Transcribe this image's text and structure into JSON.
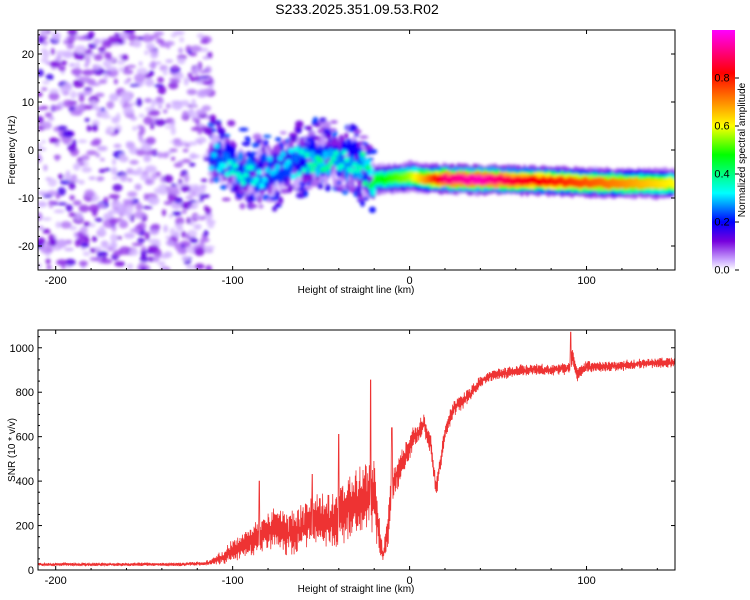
{
  "title": "S233.2025.351.09.53.R02",
  "chart_data": [
    {
      "type": "heatmap",
      "xlabel": "Height of straight line (km)",
      "ylabel": "Frequency (Hz)",
      "xlim": [
        -210,
        150
      ],
      "ylim": [
        -25,
        25
      ],
      "xticks": [
        -200,
        -100,
        0,
        100
      ],
      "xtick_labels": [
        "-200",
        "-100",
        "0",
        "100"
      ],
      "yticks": [
        -20,
        -10,
        0,
        10,
        20
      ],
      "ytick_labels": [
        "-20",
        "-10",
        "0",
        "10",
        "20"
      ],
      "colorbar": {
        "label": "Normalized spectral amplitude",
        "range": [
          0,
          1
        ],
        "ticks": [
          0.0,
          0.2,
          0.4,
          0.6,
          0.8
        ],
        "tick_labels": [
          "0.0",
          "0.2",
          "0.4",
          "0.6",
          "0.8"
        ]
      },
      "ridge": {
        "description": "tone frequency versus height",
        "x": [
          -110,
          -100,
          -90,
          -80,
          -70,
          -60,
          -50,
          -40,
          -30,
          -20,
          -10,
          0,
          10,
          20,
          40,
          60,
          80,
          100,
          120,
          150
        ],
        "y": [
          -1,
          -3,
          -5,
          -4.5,
          -3,
          -2.5,
          -2,
          -1.5,
          -2.5,
          -6,
          -6,
          -5.5,
          -6,
          -6,
          -6.2,
          -6.3,
          -6.5,
          -6.8,
          -6.9,
          -7
        ],
        "peak_amplitude": [
          0.3,
          0.35,
          0.35,
          0.3,
          0.3,
          0.35,
          0.4,
          0.35,
          0.35,
          0.45,
          0.5,
          0.55,
          0.7,
          0.9,
          0.95,
          0.85,
          0.8,
          0.75,
          0.7,
          0.6
        ]
      },
      "noise_region_x": [
        -210,
        -112
      ]
    },
    {
      "type": "line",
      "xlabel": "Height of straight line (km)",
      "ylabel": "SNR (10 * v/v)",
      "xlim": [
        -210,
        150
      ],
      "ylim": [
        0,
        1080
      ],
      "xticks": [
        -200,
        -100,
        0,
        100
      ],
      "xtick_labels": [
        "-200",
        "-100",
        "0",
        "100"
      ],
      "yticks": [
        0,
        200,
        400,
        600,
        800,
        1000
      ],
      "ytick_labels": [
        "0",
        "200",
        "400",
        "600",
        "800",
        "1000"
      ],
      "series": [
        {
          "name": "SNR",
          "color": "#ee3333",
          "x": [
            -210,
            -190,
            -170,
            -150,
            -130,
            -115,
            -105,
            -100,
            -95,
            -90,
            -85,
            -80,
            -75,
            -70,
            -65,
            -60,
            -55,
            -50,
            -45,
            -40,
            -35,
            -30,
            -25,
            -20,
            -18,
            -15,
            -12,
            -10,
            -5,
            0,
            5,
            8,
            12,
            15,
            20,
            25,
            30,
            35,
            40,
            45,
            50,
            60,
            70,
            80,
            85,
            90,
            92,
            95,
            100,
            110,
            120,
            130,
            140,
            150
          ],
          "y": [
            25,
            25,
            25,
            25,
            25,
            30,
            60,
            90,
            110,
            130,
            150,
            175,
            185,
            165,
            160,
            195,
            215,
            225,
            220,
            245,
            280,
            300,
            320,
            340,
            210,
            60,
            200,
            380,
            470,
            560,
            620,
            660,
            560,
            360,
            620,
            730,
            760,
            800,
            850,
            870,
            880,
            895,
            900,
            900,
            905,
            910,
            960,
            880,
            915,
            915,
            920,
            930,
            930,
            935
          ],
          "spread": [
            15,
            15,
            15,
            15,
            15,
            20,
            60,
            90,
            100,
            120,
            140,
            170,
            190,
            190,
            190,
            200,
            210,
            220,
            230,
            250,
            270,
            280,
            300,
            320,
            200,
            60,
            200,
            140,
            120,
            110,
            100,
            90,
            90,
            90,
            80,
            70,
            65,
            60,
            55,
            50,
            50,
            50,
            50,
            50,
            50,
            60,
            80,
            60,
            50,
            45,
            45,
            45,
            45,
            45
          ]
        }
      ],
      "peaks": [
        {
          "x": -85,
          "y": 400
        },
        {
          "x": -55,
          "y": 430
        },
        {
          "x": -40,
          "y": 610
        },
        {
          "x": -22,
          "y": 855
        },
        {
          "x": -10,
          "y": 640
        },
        {
          "x": 91,
          "y": 1070
        }
      ]
    }
  ]
}
